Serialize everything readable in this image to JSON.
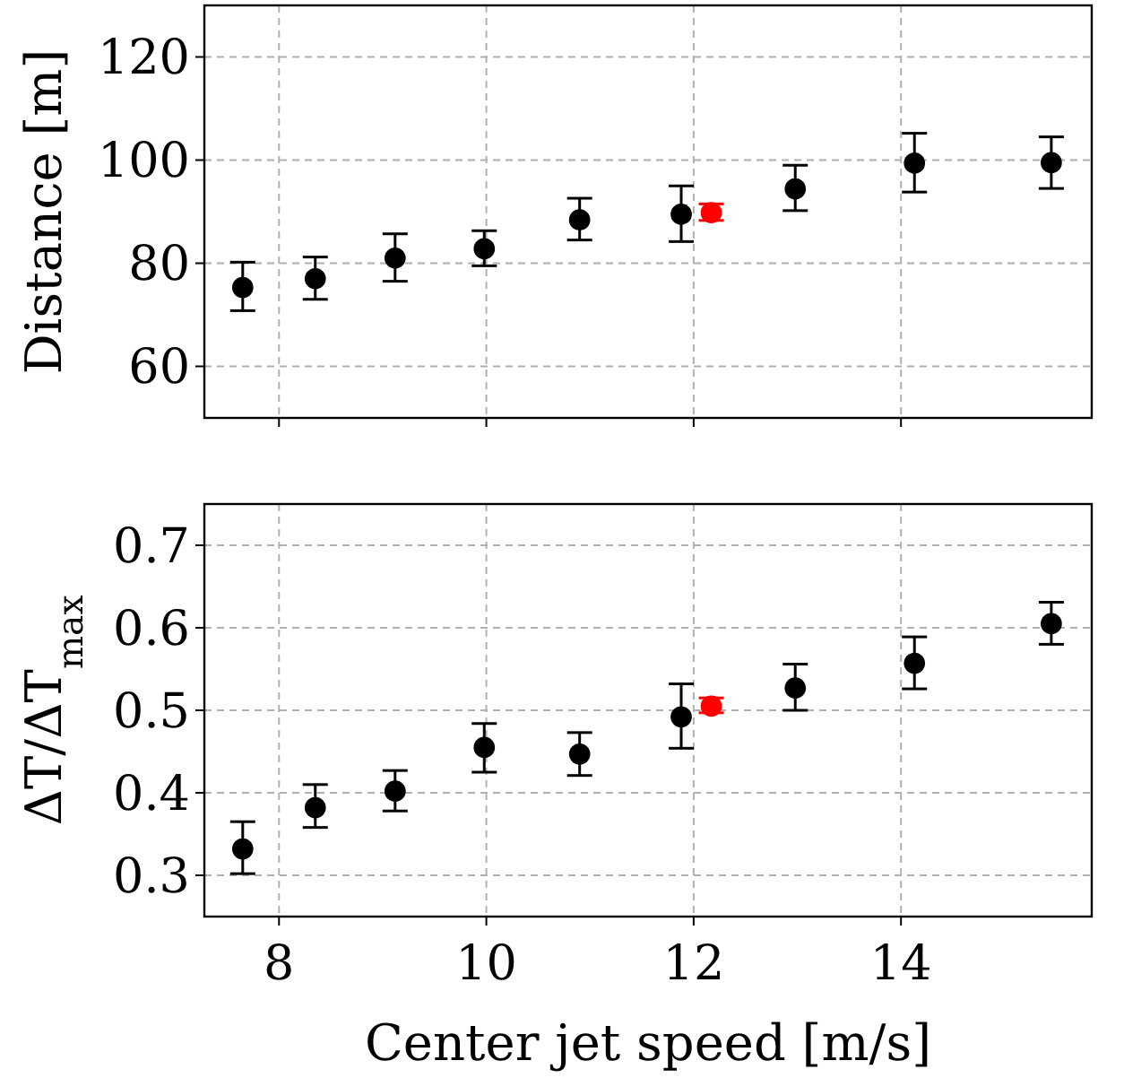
{
  "chart_data": [
    {
      "type": "scatter",
      "ylabel": "Distance [m]",
      "xlim": [
        7.28,
        15.84
      ],
      "xticks": [
        8,
        10,
        12,
        14
      ],
      "ylim": [
        50,
        130
      ],
      "yticks": [
        60,
        80,
        100,
        120
      ],
      "grid": true,
      "marker": "circle",
      "tick_labels": "y",
      "series": [
        {
          "color": "#000000",
          "x": [
            7.65,
            8.35,
            9.12,
            9.98,
            10.9,
            11.88,
            12.98,
            14.13,
            15.45
          ],
          "values": [
            75.3,
            77,
            81,
            82.8,
            88.4,
            89.5,
            94.4,
            99.4,
            99.5
          ],
          "errors": [
            [
              70.8,
              80.2
            ],
            [
              73,
              81.2
            ],
            [
              76.5,
              85.7
            ],
            [
              79.5,
              86.3
            ],
            [
              84.5,
              92.6
            ],
            [
              84.2,
              95
            ],
            [
              90.2,
              99
            ],
            [
              93.8,
              105.2
            ],
            [
              94.5,
              104.5
            ]
          ]
        },
        {
          "color": "#ff0000",
          "x": [
            12.17
          ],
          "values": [
            89.8
          ],
          "errors": [
            [
              88.3,
              91.5
            ]
          ]
        }
      ]
    },
    {
      "type": "scatter",
      "xlabel": "Center jet speed [m/s]",
      "ylabel": "ΔT/ΔT$_{max}$",
      "xlim": [
        7.28,
        15.84
      ],
      "xticks": [
        8,
        10,
        12,
        14
      ],
      "ylim": [
        0.25,
        0.75
      ],
      "yticks": [
        0.3,
        0.4,
        0.5,
        0.6,
        0.7
      ],
      "grid": true,
      "marker": "circle",
      "series": [
        {
          "color": "#000000",
          "x": [
            7.65,
            8.35,
            9.12,
            9.98,
            10.9,
            11.88,
            12.98,
            14.13,
            15.45
          ],
          "values": [
            0.332,
            0.382,
            0.402,
            0.455,
            0.447,
            0.492,
            0.527,
            0.557,
            0.605
          ],
          "errors": [
            [
              0.302,
              0.365
            ],
            [
              0.358,
              0.41
            ],
            [
              0.378,
              0.427
            ],
            [
              0.425,
              0.484
            ],
            [
              0.421,
              0.473
            ],
            [
              0.454,
              0.532
            ],
            [
              0.5,
              0.556
            ],
            [
              0.526,
              0.589
            ],
            [
              0.58,
              0.631
            ]
          ]
        },
        {
          "color": "#ff0000",
          "x": [
            12.17
          ],
          "values": [
            0.505
          ],
          "errors": [
            [
              0.497,
              0.515
            ]
          ]
        }
      ]
    }
  ]
}
